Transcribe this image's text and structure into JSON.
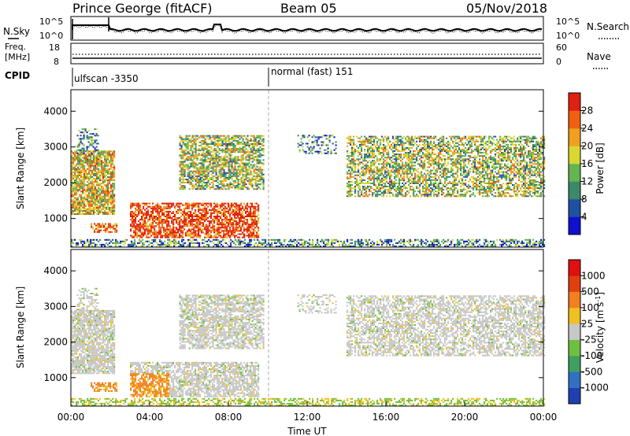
{
  "header": {
    "title": "Prince George (fitACF)",
    "beam": "Beam 05",
    "date": "05/Nov/2018"
  },
  "noise_panel": {
    "left_label": "N.Sky",
    "right_label": "N.Search",
    "left_ticks": [
      "10^5",
      "10^0"
    ],
    "right_ticks": [
      "10^5",
      "10^0"
    ]
  },
  "freq_panel": {
    "left_label_line1": "Freq.",
    "left_label_line2": "[MHz]",
    "left_ticks": [
      "18",
      "8"
    ],
    "right_label": "Nave",
    "right_ticks": [
      "60",
      "0"
    ]
  },
  "cpid_panel": {
    "label": "CPID",
    "segments": [
      {
        "text": "ulfscan -3350",
        "start_hour": 0
      },
      {
        "text": "normal (fast) 151",
        "start_hour": 10
      }
    ]
  },
  "chart_data": [
    {
      "type": "heatmap",
      "name": "power",
      "ylabel": "Slant Range [km]",
      "yticks": [
        "1000",
        "2000",
        "3000",
        "4000"
      ],
      "ylim": [
        200,
        4600
      ],
      "xlim": [
        0,
        24
      ],
      "colorbar": {
        "label": "Power [dB]",
        "ticks": [
          "4",
          "8",
          "12",
          "16",
          "20",
          "24",
          "28"
        ],
        "colors": [
          "#1010d0",
          "#2050a0",
          "#3a8a6a",
          "#64b450",
          "#d8d830",
          "#f0a020",
          "#f06010",
          "#e02010"
        ]
      }
    },
    {
      "type": "heatmap",
      "name": "velocity",
      "ylabel": "Slant Range [km]",
      "yticks": [
        "1000",
        "2000",
        "3000",
        "4000"
      ],
      "ylim": [
        200,
        4600
      ],
      "xlim": [
        0,
        24
      ],
      "xlabel": "Time UT",
      "xticks": [
        "00:00",
        "04:00",
        "08:00",
        "12:00",
        "16:00",
        "20:00",
        "00:00"
      ],
      "colorbar": {
        "label": "Velocity",
        "unit": "[m s",
        "unit_exp": "-1",
        "unit_close": "]",
        "ticks": [
          "1000",
          "500",
          "100",
          "25",
          "-25",
          "-100",
          "-500",
          "-1000"
        ],
        "colors": [
          "#2040b0",
          "#3070c0",
          "#40a060",
          "#70c040",
          "#c8c8c8",
          "#f0c020",
          "#f08020",
          "#e04010",
          "#e01010"
        ]
      }
    }
  ]
}
